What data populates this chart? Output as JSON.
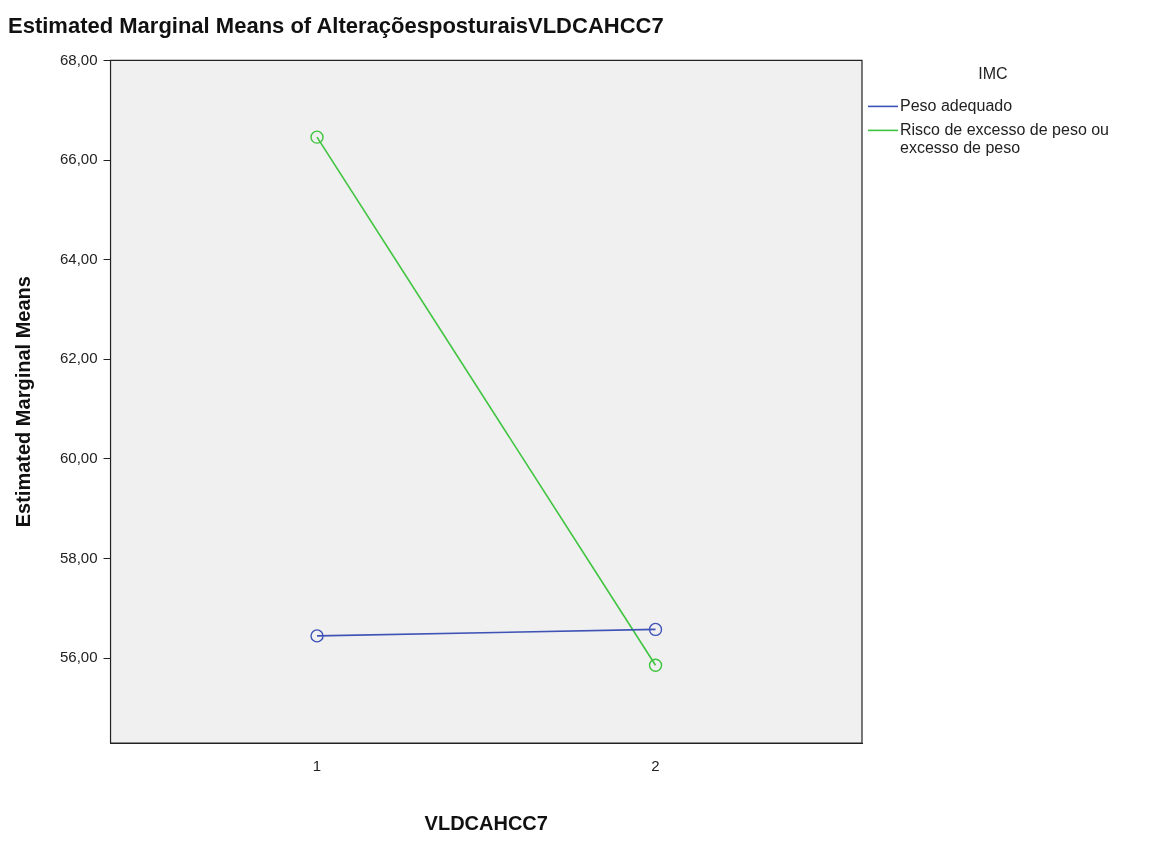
{
  "chart_data": {
    "type": "line",
    "title": "Estimated Marginal Means of AlteraçõesposturaisVLDCAHCC7",
    "xlabel": "VLDCAHCC7",
    "ylabel": "Estimated Marginal Means",
    "legend_title": "IMC",
    "x": [
      1,
      2
    ],
    "xlim": [
      0.39,
      2.61
    ],
    "xticks": [
      1,
      2
    ],
    "ylim": [
      54.3,
      68
    ],
    "yticks": [
      {
        "value": 56,
        "label": "56,00"
      },
      {
        "value": 58,
        "label": "58,00"
      },
      {
        "value": 60,
        "label": "60,00"
      },
      {
        "value": 62,
        "label": "62,00"
      },
      {
        "value": 64,
        "label": "64,00"
      },
      {
        "value": 66,
        "label": "66,00"
      },
      {
        "value": 68,
        "label": "68,00"
      }
    ],
    "series": [
      {
        "name": "Peso adequado",
        "color": "#3e53b5",
        "values": [
          56.45,
          56.58
        ]
      },
      {
        "name": "Risco de excesso de peso ou excesso de peso",
        "color": "#3fc43f",
        "values": [
          66.46,
          55.86
        ]
      }
    ],
    "marker": "circle",
    "line_style": "solid",
    "grid": false,
    "legend": "top right"
  }
}
